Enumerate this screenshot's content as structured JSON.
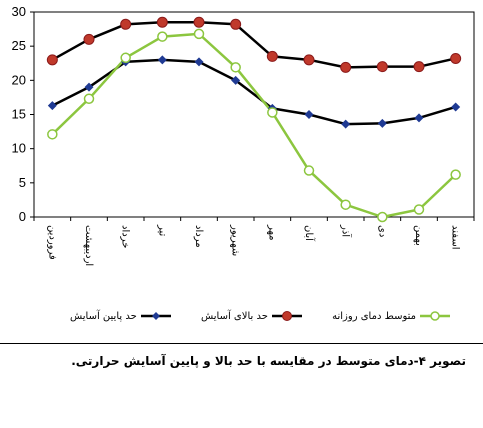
{
  "chart_data": {
    "type": "line",
    "categories": [
      "فروردین",
      "اردیبهشت",
      "خرداد",
      "تیر",
      "مرداد",
      "شهریور",
      "مهر",
      "آبان",
      "آذر",
      "دی",
      "بهمن",
      "اسفند"
    ],
    "ylim": [
      0,
      30
    ],
    "yticks": [
      0,
      5,
      10,
      15,
      20,
      25,
      30
    ],
    "grid": false,
    "legend_position": "bottom",
    "series": [
      {
        "name": "حد پایین آسایش",
        "color": "#1f3a93",
        "marker": "diamond",
        "values": [
          16.3,
          19,
          22.7,
          23,
          22.7,
          20,
          15.9,
          15,
          13.6,
          13.7,
          14.5,
          16.1
        ]
      },
      {
        "name": "حد بالای آسایش",
        "color": "#c0392b",
        "marker": "circle",
        "values": [
          23,
          26,
          28.2,
          28.5,
          28.5,
          28.2,
          23.5,
          23,
          21.9,
          22,
          22,
          23.2
        ]
      },
      {
        "name": "متوسط دمای روزانه",
        "color": "#8cc63f",
        "marker": "hollow-circle",
        "values": [
          12.1,
          17.3,
          23.3,
          26.4,
          26.8,
          21.9,
          15.3,
          6.8,
          1.8,
          0,
          1.1,
          6.2
        ]
      }
    ]
  },
  "caption": "تصویر ۴-دمای متوسط در مقایسه با حد بالا و پایین آسایش حرارتی."
}
